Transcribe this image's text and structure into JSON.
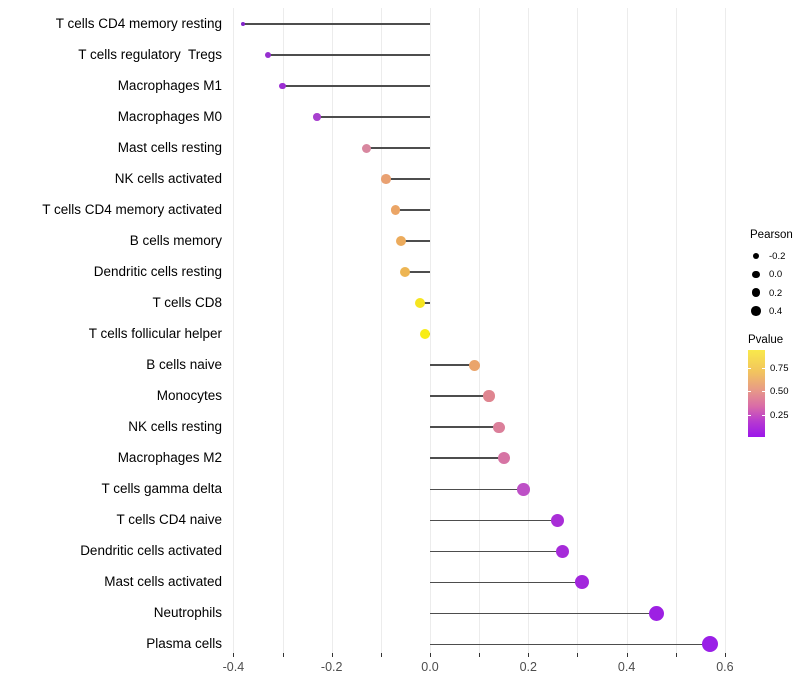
{
  "chart_data": {
    "type": "lollipop",
    "orientation": "horizontal",
    "title": "",
    "xlabel": "",
    "ylabel": "",
    "xlim": [
      -0.45,
      0.62
    ],
    "grid": "vertical-only",
    "x_tick_values": [
      -0.4,
      -0.2,
      0.0,
      0.2,
      0.4,
      0.6
    ],
    "x_tick_labels": [
      "-0.4",
      "-0.2",
      "0.0",
      "0.2",
      "0.4",
      "0.6"
    ],
    "x_minor_step": 0.1,
    "rows": [
      {
        "label": "T cells CD4 memory resting",
        "pearson": -0.38,
        "dot_color": "#8224c9",
        "dot_size": 4.5
      },
      {
        "label": "T cells regulatory  Tregs",
        "pearson": -0.33,
        "dot_color": "#962fd0",
        "dot_size": 6
      },
      {
        "label": "Macrophages M1",
        "pearson": -0.3,
        "dot_color": "#9c2dd3",
        "dot_size": 6.5
      },
      {
        "label": "Macrophages M0",
        "pearson": -0.23,
        "dot_color": "#a840cf",
        "dot_size": 7.5
      },
      {
        "label": "Mast cells resting",
        "pearson": -0.13,
        "dot_color": "#d8879f",
        "dot_size": 9
      },
      {
        "label": "NK cells activated",
        "pearson": -0.09,
        "dot_color": "#e9a172",
        "dot_size": 9.5
      },
      {
        "label": "T cells CD4 memory activated",
        "pearson": -0.07,
        "dot_color": "#eba566",
        "dot_size": 9.5
      },
      {
        "label": "B cells memory",
        "pearson": -0.06,
        "dot_color": "#ecab5c",
        "dot_size": 10
      },
      {
        "label": "Dendritic cells resting",
        "pearson": -0.05,
        "dot_color": "#edb553",
        "dot_size": 10
      },
      {
        "label": "T cells CD8",
        "pearson": -0.02,
        "dot_color": "#f6e51f",
        "dot_size": 10.5
      },
      {
        "label": "T cells follicular helper",
        "pearson": -0.01,
        "dot_color": "#f8ed16",
        "dot_size": 10.5
      },
      {
        "label": "B cells naive",
        "pearson": 0.09,
        "dot_color": "#eaa46b",
        "dot_size": 11
      },
      {
        "label": "Monocytes",
        "pearson": 0.12,
        "dot_color": "#df8590",
        "dot_size": 11.5
      },
      {
        "label": "NK cells resting",
        "pearson": 0.14,
        "dot_color": "#db7f9a",
        "dot_size": 11.5
      },
      {
        "label": "Macrophages M2",
        "pearson": 0.15,
        "dot_color": "#d674a4",
        "dot_size": 12
      },
      {
        "label": "T cells gamma delta",
        "pearson": 0.19,
        "dot_color": "#bd50c6",
        "dot_size": 12.5
      },
      {
        "label": "T cells CD4 naive",
        "pearson": 0.26,
        "dot_color": "#a92ed7",
        "dot_size": 13
      },
      {
        "label": "Dendritic cells activated",
        "pearson": 0.27,
        "dot_color": "#a62bd9",
        "dot_size": 13.5
      },
      {
        "label": "Mast cells activated",
        "pearson": 0.31,
        "dot_color": "#a226dc",
        "dot_size": 14
      },
      {
        "label": "Neutrophils",
        "pearson": 0.46,
        "dot_color": "#9d20e3",
        "dot_size": 15
      },
      {
        "label": "Plasma cells",
        "pearson": 0.57,
        "dot_color": "#9a1fe7",
        "dot_size": 16
      }
    ],
    "legend_size": {
      "title": "Pearson",
      "entries": [
        {
          "label": "-0.2",
          "dot_size": 6
        },
        {
          "label": "0.0",
          "dot_size": 7.5
        },
        {
          "label": "0.2",
          "dot_size": 8.5
        },
        {
          "label": "0.4",
          "dot_size": 9.5
        }
      ]
    },
    "legend_color": {
      "title": "Pvalue",
      "tick_labels": [
        "0.75",
        "0.50",
        "0.25"
      ],
      "gradient_top_color": "#f9e94b",
      "gradient_bottom_color": "#9b16ea"
    },
    "style": {
      "stem_color": "#4d4d4d",
      "gridline_color": "#ececec",
      "axis_text_color": "#4d4d4d",
      "label_text_color": "#000000",
      "background": "#ffffff"
    }
  }
}
